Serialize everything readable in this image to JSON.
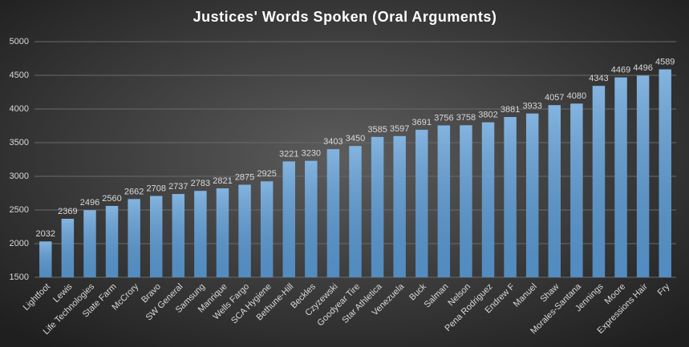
{
  "chart_data": {
    "type": "bar",
    "title": "Justices' Words Spoken (Oral Arguments)",
    "categories": [
      "Lightfoot",
      "Lewis",
      "Life Technologies",
      "State Farm",
      "McCrory",
      "Bravo",
      "SW General",
      "Samsung",
      "Manrique",
      "Wells Fargo",
      "SCA Hygiene",
      "Bethune-Hill",
      "Beckles",
      "Czyzewski",
      "Goodyear Tire",
      "Star Athletica",
      "Venezuela",
      "Buck",
      "Salman",
      "Nelson",
      "Pena Rodriguez",
      "Endrew F",
      "Manuel",
      "Shaw",
      "Morales-Santana",
      "Jennings",
      "Moore",
      "Expressions Hair",
      "Fry"
    ],
    "values": [
      2032,
      2369,
      2496,
      2560,
      2662,
      2708,
      2737,
      2783,
      2821,
      2875,
      2925,
      3221,
      3230,
      3403,
      3450,
      3585,
      3597,
      3691,
      3756,
      3758,
      3802,
      3881,
      3933,
      4057,
      4080,
      4343,
      4469,
      4496,
      4589
    ],
    "color": "#5b9bd5",
    "ylim": [
      1500,
      5000
    ],
    "yticks": [
      1500,
      2000,
      2500,
      3000,
      3500,
      4000,
      4500,
      5000
    ],
    "grid": true
  }
}
